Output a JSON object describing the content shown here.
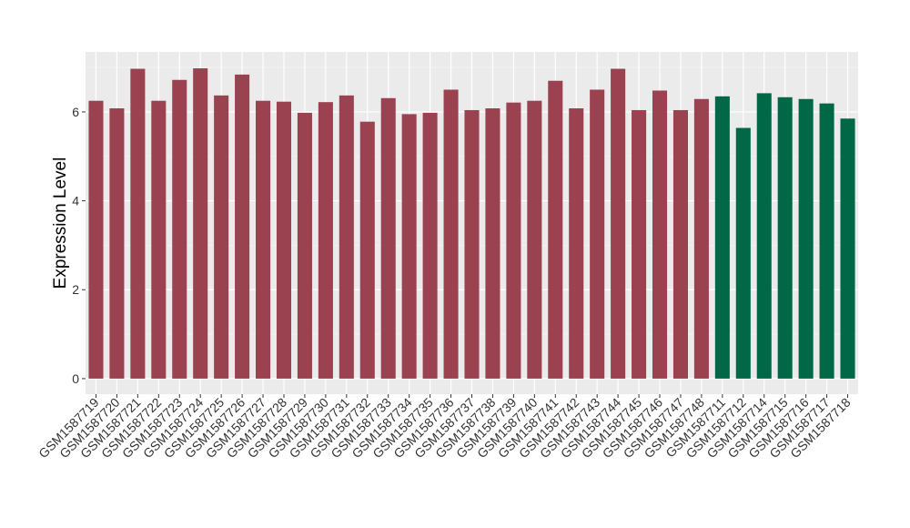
{
  "chart_data": {
    "type": "bar",
    "ylabel": "Expression Level",
    "xlabel": "",
    "ylim": [
      -0.35,
      7.35
    ],
    "yticks": [
      0,
      2,
      4,
      6
    ],
    "grid": true,
    "legend": "none",
    "panel_background": "#ebebeb",
    "categories": [
      "GSM1587719",
      "GSM1587720",
      "GSM1587721",
      "GSM1587722",
      "GSM1587723",
      "GSM1587724",
      "GSM1587725",
      "GSM1587726",
      "GSM1587727",
      "GSM1587728",
      "GSM1587729",
      "GSM1587730",
      "GSM1587731",
      "GSM1587732",
      "GSM1587733",
      "GSM1587734",
      "GSM1587735",
      "GSM1587736",
      "GSM1587737",
      "GSM1587738",
      "GSM1587739",
      "GSM1587740",
      "GSM1587741",
      "GSM1587742",
      "GSM1587743",
      "GSM1587744",
      "GSM1587745",
      "GSM1587746",
      "GSM1587747",
      "GSM1587748",
      "GSM1587711",
      "GSM1587712",
      "GSM1587714",
      "GSM1587715",
      "GSM1587716",
      "GSM1587717",
      "GSM1587718"
    ],
    "values": [
      6.25,
      6.08,
      6.97,
      6.25,
      6.72,
      6.98,
      6.37,
      6.84,
      6.25,
      6.23,
      5.98,
      6.22,
      6.37,
      5.78,
      6.31,
      5.95,
      5.98,
      6.5,
      6.04,
      6.08,
      6.21,
      6.25,
      6.7,
      6.08,
      6.5,
      6.97,
      6.04,
      6.48,
      6.04,
      6.29,
      6.35,
      5.64,
      6.42,
      6.33,
      6.29,
      6.19,
      5.85
    ],
    "colors": [
      "#9b4250",
      "#9b4250",
      "#9b4250",
      "#9b4250",
      "#9b4250",
      "#9b4250",
      "#9b4250",
      "#9b4250",
      "#9b4250",
      "#9b4250",
      "#9b4250",
      "#9b4250",
      "#9b4250",
      "#9b4250",
      "#9b4250",
      "#9b4250",
      "#9b4250",
      "#9b4250",
      "#9b4250",
      "#9b4250",
      "#9b4250",
      "#9b4250",
      "#9b4250",
      "#9b4250",
      "#9b4250",
      "#9b4250",
      "#9b4250",
      "#9b4250",
      "#9b4250",
      "#9b4250",
      "#006847",
      "#006847",
      "#006847",
      "#006847",
      "#006847",
      "#006847",
      "#006847"
    ]
  }
}
